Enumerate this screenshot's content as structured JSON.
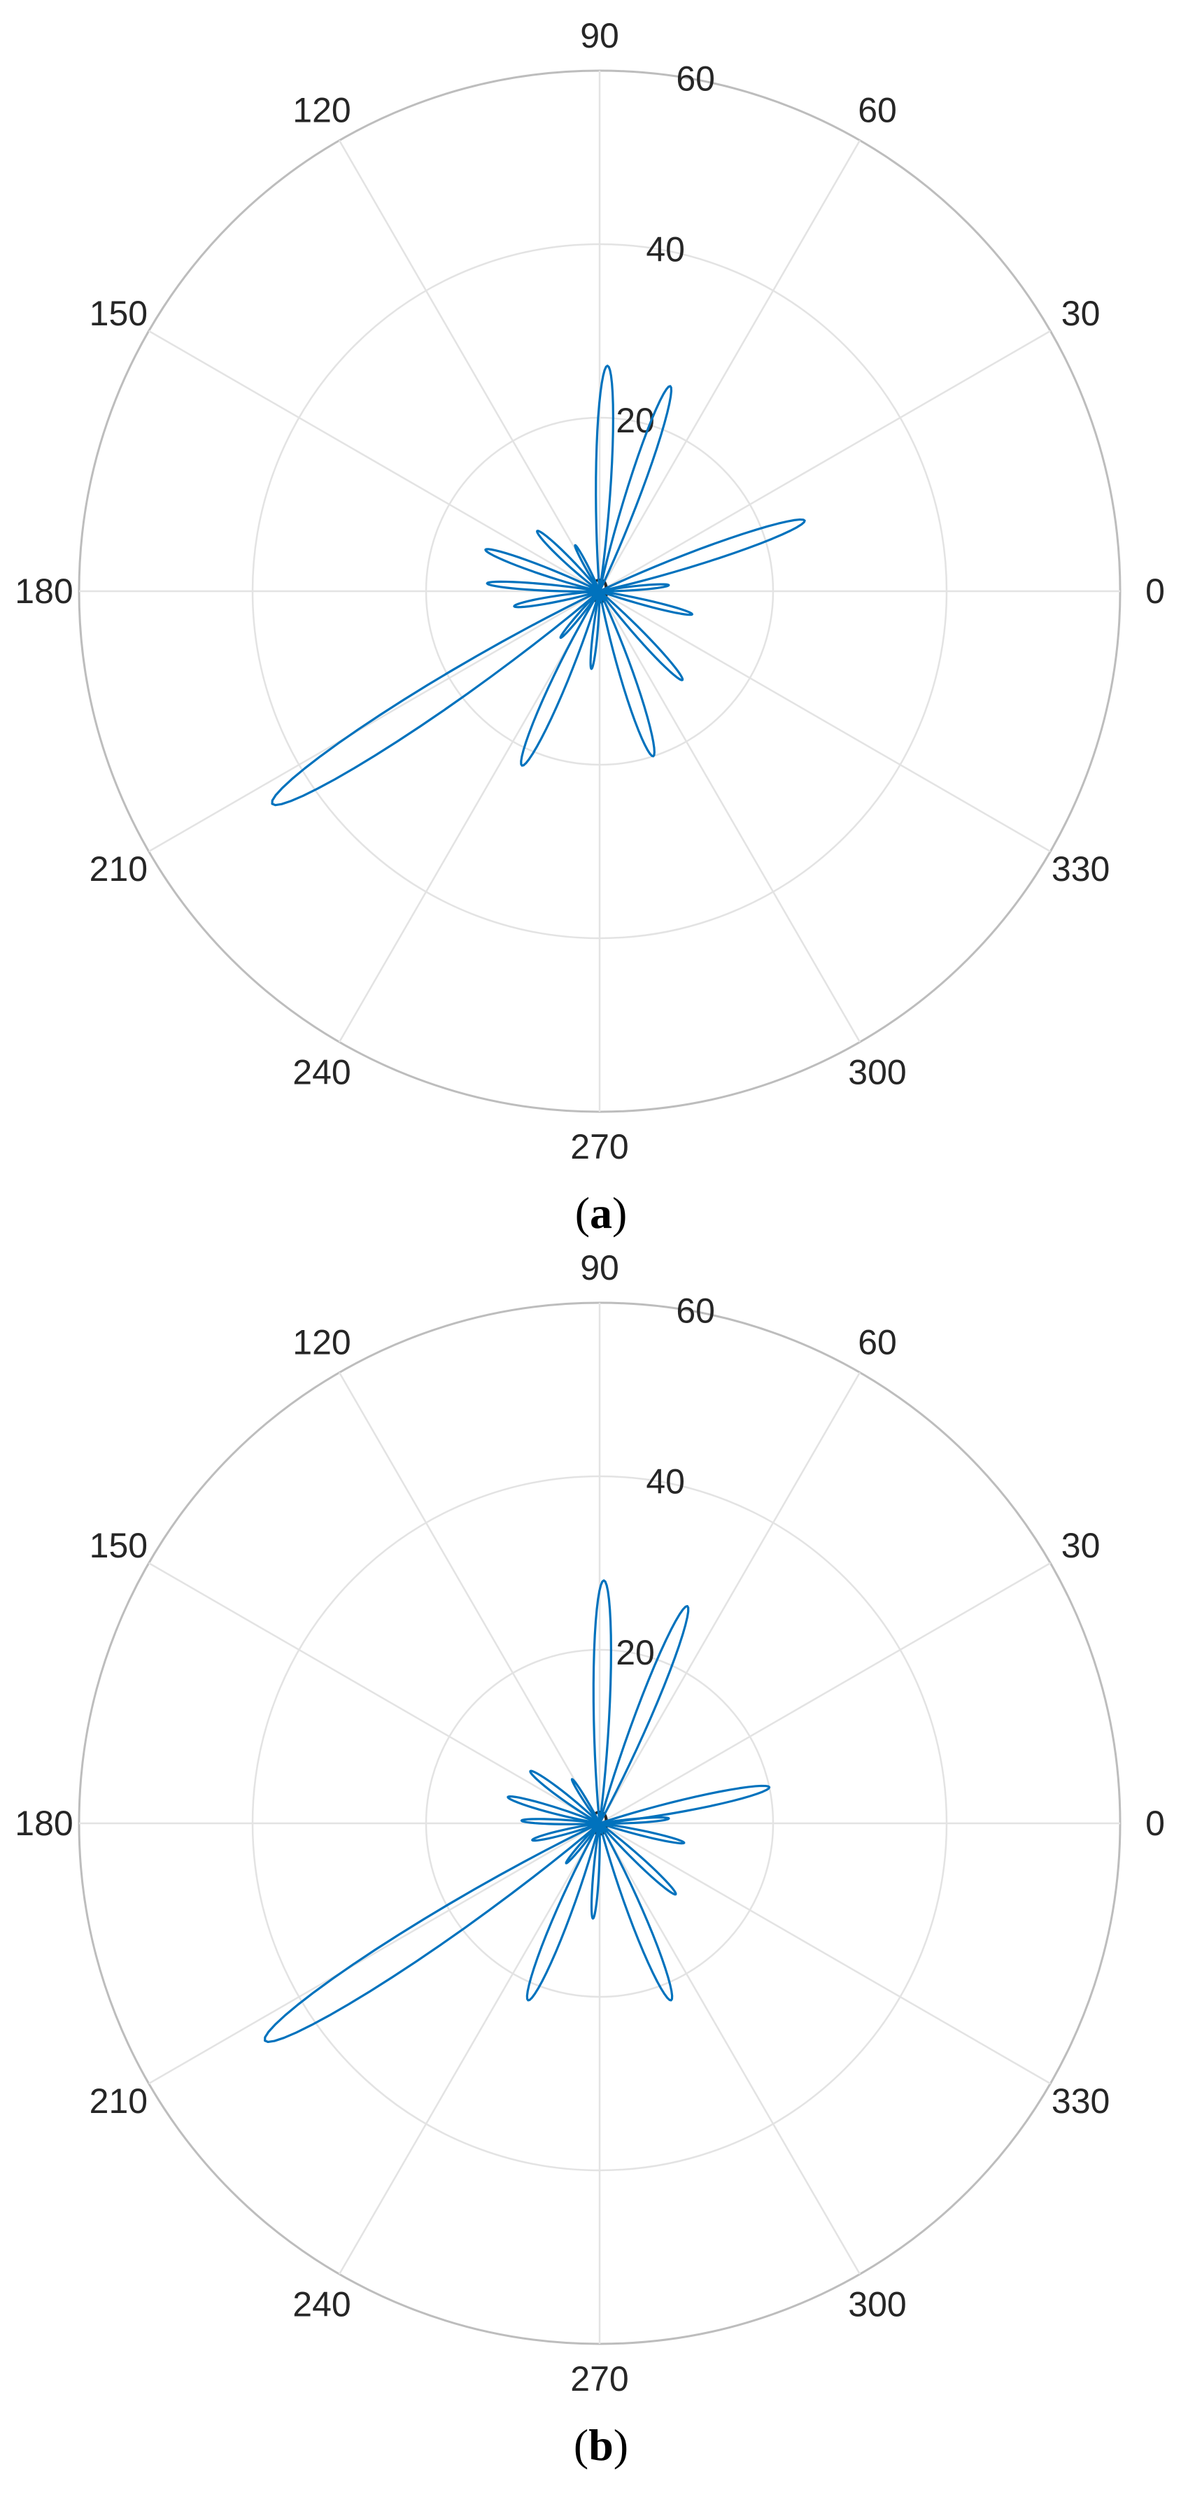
{
  "chart_data": [
    {
      "type": "polar-line",
      "caption_letter": "a",
      "theta_unit": "degrees",
      "theta_ticks": [
        "0",
        "30",
        "60",
        "90",
        "120",
        "150",
        "180",
        "210",
        "240",
        "270",
        "300",
        "330"
      ],
      "r_ticks": [
        "0",
        "20",
        "40",
        "60"
      ],
      "r_max": 60,
      "grid": true,
      "color": "#0072BD",
      "lobes": [
        {
          "angle": 88,
          "r": 26,
          "width": 7
        },
        {
          "angle": 71,
          "r": 25,
          "width": 7
        },
        {
          "angle": 19,
          "r": 25,
          "width": 7
        },
        {
          "angle": 136,
          "r": 10,
          "width": 8
        },
        {
          "angle": 160,
          "r": 14,
          "width": 7
        },
        {
          "angle": 176,
          "r": 13,
          "width": 6
        },
        {
          "angle": 190,
          "r": 10,
          "width": 7
        },
        {
          "angle": 213,
          "r": 45,
          "width": 8
        },
        {
          "angle": 246,
          "r": 22,
          "width": 8
        },
        {
          "angle": 264,
          "r": 9,
          "width": 6
        },
        {
          "angle": 288,
          "r": 20,
          "width": 8
        },
        {
          "angle": 313,
          "r": 14,
          "width": 7
        },
        {
          "angle": 346,
          "r": 11,
          "width": 6
        },
        {
          "angle": 5,
          "r": 8,
          "width": 6
        },
        {
          "angle": 118,
          "r": 6,
          "width": 6
        },
        {
          "angle": 230,
          "r": 7,
          "width": 6
        }
      ]
    },
    {
      "type": "polar-line",
      "caption_letter": "b",
      "theta_unit": "degrees",
      "theta_ticks": [
        "0",
        "30",
        "60",
        "90",
        "120",
        "150",
        "180",
        "210",
        "240",
        "270",
        "300",
        "330"
      ],
      "r_ticks": [
        "0",
        "20",
        "40",
        "60"
      ],
      "r_max": 60,
      "grid": true,
      "color": "#0072BD",
      "lobes": [
        {
          "angle": 89,
          "r": 28,
          "width": 7
        },
        {
          "angle": 68,
          "r": 27,
          "width": 7
        },
        {
          "angle": 12,
          "r": 20,
          "width": 7
        },
        {
          "angle": 143,
          "r": 10,
          "width": 8
        },
        {
          "angle": 164,
          "r": 11,
          "width": 7
        },
        {
          "angle": 178,
          "r": 9,
          "width": 6
        },
        {
          "angle": 194,
          "r": 8,
          "width": 7
        },
        {
          "angle": 213,
          "r": 46,
          "width": 8
        },
        {
          "angle": 248,
          "r": 22,
          "width": 8
        },
        {
          "angle": 266,
          "r": 11,
          "width": 6
        },
        {
          "angle": 292,
          "r": 22,
          "width": 8
        },
        {
          "angle": 317,
          "r": 12,
          "width": 7
        },
        {
          "angle": 347,
          "r": 10,
          "width": 6
        },
        {
          "angle": 4,
          "r": 8,
          "width": 6
        },
        {
          "angle": 122,
          "r": 6,
          "width": 6
        },
        {
          "angle": 230,
          "r": 6,
          "width": 6
        }
      ]
    }
  ]
}
